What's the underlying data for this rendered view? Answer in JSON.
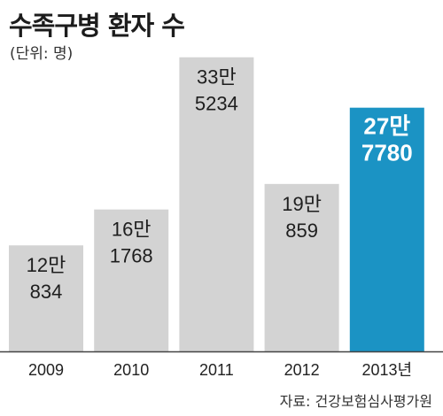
{
  "title": "수족구병 환자 수",
  "unit_note": "(단위: 명)",
  "source": "자료: 건강보험심사평가원",
  "colors": {
    "bar_default": "#d3d3d3",
    "bar_highlight": "#1b93c4",
    "label_default": "#1e1e1e",
    "label_highlight": "#ffffff",
    "axis": "#444444"
  },
  "chart_data": {
    "type": "bar",
    "categories": [
      "2009",
      "2010",
      "2011",
      "2012",
      "2013년"
    ],
    "values": [
      120834,
      161768,
      335234,
      190859,
      277780
    ],
    "value_labels": [
      [
        "12만",
        "834"
      ],
      [
        "16만",
        "1768"
      ],
      [
        "33만",
        "5234"
      ],
      [
        "19만",
        "859"
      ],
      [
        "27만",
        "7780"
      ]
    ],
    "highlight_index": 4,
    "ylim": [
      0,
      340000
    ],
    "grid": false,
    "title": "수족구병 환자 수",
    "xlabel": "",
    "ylabel": ""
  }
}
